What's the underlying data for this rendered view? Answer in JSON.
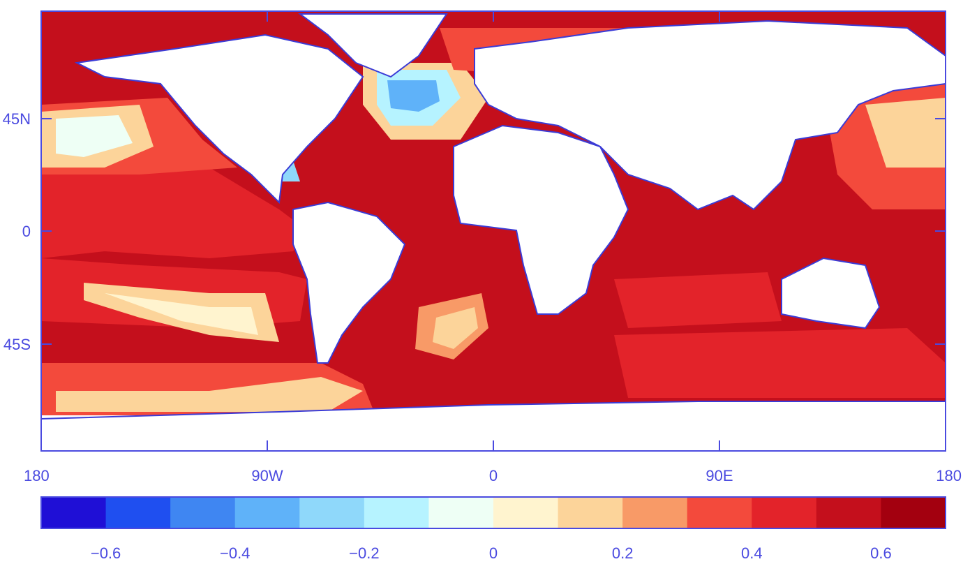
{
  "map": {
    "latitude_ticks": [
      "45N",
      "0",
      "45S"
    ],
    "longitude_ticks": [
      "180",
      "90W",
      "0",
      "90E",
      "180"
    ],
    "land_color": "#ffffff",
    "coastline_color": "#3b3bd6",
    "frame_color": "#4a4ae0"
  },
  "colorbar": {
    "colors": [
      "#1f0fd6",
      "#1f4ff0",
      "#3f86f2",
      "#5fb2f9",
      "#8fd8fa",
      "#b6f3ff",
      "#eefff5",
      "#fff4cf",
      "#fcd49a",
      "#f89a67",
      "#f34a3c",
      "#e3232a",
      "#c40f1c",
      "#a3000f"
    ],
    "tick_labels": [
      "−0.6",
      "−0.4",
      "−0.2",
      "0",
      "0.2",
      "0.4",
      "0.6"
    ],
    "range": [
      -0.7,
      0.7
    ]
  }
}
